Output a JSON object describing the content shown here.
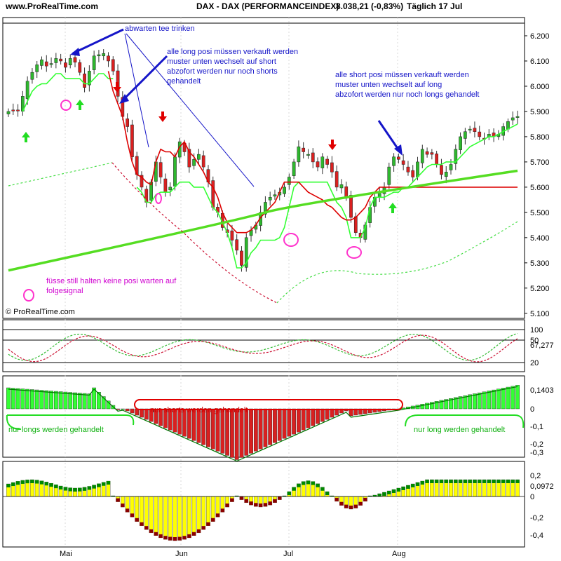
{
  "header": {
    "site": "www.ProRealTime.com",
    "instrument": "DAX - DAX (PERFORMANCEINDEX)",
    "quote": "8.038,21 (-0,83%)",
    "period": "Täglich  17 Jul"
  },
  "watermark": "© ProRealTime.com",
  "colors": {
    "up": "#2eb82e",
    "down": "#d92020",
    "green_line": "#33ff33",
    "red_line": "#dd0000",
    "ma": "#55dd22",
    "blue": "#1515c8",
    "magenta": "#ff33cc",
    "yellow": "#ffff00",
    "darkgreen": "#008800",
    "maroon": "#8b0000"
  },
  "annotations": {
    "a1": "abwarten tee trinken",
    "a2": [
      "alle long posi müssen verkauft werden",
      "muster unten wechselt auf short",
      "abzofort werden nur noch shorts",
      "gehandelt"
    ],
    "a3": [
      "alle short posi müssen verkauft werden",
      "muster unten wechselt auf long",
      "abzofort werden nur noch longs gehandelt"
    ],
    "a4": [
      "füsse still halten keine posi warten auf",
      "folgesignal"
    ],
    "a5": "nur shorts werden gehandelt",
    "a6": "nur longs werden gehandelt",
    "a7": "nur long werden gehandelt"
  },
  "chart_data": [
    {
      "type": "candlestick",
      "panel": "price",
      "x_ticks": [
        "Mai",
        "Jun",
        "Jul",
        "Aug"
      ],
      "y_ticks": [
        "6.200",
        "6.100",
        "6.000",
        "5.900",
        "5.800",
        "5.700",
        "5.600",
        "5.500",
        "5.400",
        "5.300",
        "5.200",
        "5.100"
      ],
      "ylim": [
        5080,
        6250
      ],
      "close": [
        5900,
        5905,
        5905,
        5960,
        6020,
        6055,
        6085,
        6105,
        6080,
        6090,
        6110,
        6100,
        6075,
        6110,
        6095,
        6055,
        5995,
        6060,
        6120,
        6125,
        6130,
        6100,
        6060,
        5960,
        5880,
        5840,
        5720,
        5650,
        5600,
        5540,
        5620,
        5700,
        5640,
        5580,
        5600,
        5720,
        5780,
        5740,
        5680,
        5710,
        5730,
        5680,
        5620,
        5520,
        5500,
        5440,
        5420,
        5390,
        5350,
        5290,
        5400,
        5430,
        5450,
        5500,
        5540,
        5560,
        5570,
        5580,
        5600,
        5640,
        5700,
        5760,
        5740,
        5730,
        5700,
        5680,
        5720,
        5690,
        5660,
        5600,
        5610,
        5560,
        5480,
        5420,
        5400,
        5450,
        5520,
        5560,
        5580,
        5600,
        5680,
        5720,
        5710,
        5690,
        5660,
        5640,
        5700,
        5750,
        5730,
        5730,
        5690,
        5650,
        5660,
        5690,
        5750,
        5800,
        5820,
        5830,
        5820,
        5800,
        5790,
        5810,
        5800,
        5810,
        5840,
        5860,
        5875,
        5880
      ],
      "support_line": [
        null,
        null,
        null,
        5900,
        5940,
        5980,
        6000,
        6010,
        6010,
        6030,
        6050,
        6050,
        6030,
        6030,
        6030,
        6030,
        6010,
        6010,
        6030,
        6050,
        6050,
        6030,
        6030,
        null,
        null,
        null,
        null,
        5600,
        5580,
        5540,
        5540,
        5570,
        5580,
        5580,
        5580,
        5600,
        5620,
        5620,
        5620,
        5600,
        5600,
        5600,
        5560,
        5520,
        5500,
        5460,
        5420,
        5360,
        5280,
        5280,
        5300,
        5340,
        5360,
        5390,
        5390,
        5390,
        5390,
        5400,
        5440,
        5520,
        5600,
        5620,
        5620,
        5620,
        5620,
        5620,
        5620,
        5620,
        5580,
        5540,
        5520,
        5480,
        5400,
        5400,
        5400,
        5440,
        5520,
        5560,
        5560,
        5560,
        5570,
        5580,
        5580,
        5600,
        5600,
        5620,
        5640,
        5660,
        5680,
        5690,
        5690,
        5690,
        5700,
        5700,
        5700,
        5720,
        5740,
        5760,
        5770,
        5780,
        5790,
        5800,
        5800,
        5810,
        5820,
        5830,
        5840,
        5850
      ],
      "resistance_line": [
        null,
        null,
        null,
        null,
        null,
        null,
        null,
        null,
        null,
        null,
        null,
        null,
        null,
        null,
        null,
        null,
        null,
        null,
        null,
        null,
        null,
        6060,
        5980,
        5930,
        5880,
        5780,
        5700,
        5650,
        5640,
        5620,
        5610,
        5700,
        5750,
        5740,
        5740,
        5720,
        5760,
        5780,
        5740,
        5720,
        5690,
        5660,
        5620,
        5600,
        5560,
        5500,
        5460,
        5440,
        5420,
        5420,
        5420,
        5430,
        5450,
        5480,
        5500,
        5520,
        5540,
        5580,
        5620,
        5620,
        5620,
        5620,
        5600,
        5580,
        5570,
        5560,
        5550,
        5530,
        5520,
        5500,
        5480,
        5470,
        5470,
        5480,
        5500,
        5520,
        5560,
        5580,
        5600,
        5600,
        5600,
        5600,
        5600,
        5600,
        5600,
        5600,
        5600,
        5600,
        5600,
        5600,
        5600,
        5600,
        5600,
        5600,
        5600,
        5600,
        5600,
        5600,
        5600,
        5600,
        5600,
        5600,
        5600,
        5600,
        5600,
        5600,
        5600,
        5600
      ],
      "ma_line": {
        "start": 5270,
        "mid": 5500,
        "end": 5665
      }
    },
    {
      "type": "line",
      "panel": "oscillator",
      "y_ticks": [
        "100",
        "50",
        "20"
      ],
      "last_value": "67,277"
    },
    {
      "type": "bar",
      "panel": "histogram_1",
      "y_ticks": [
        "0,1403",
        "0",
        "-0,1",
        "-0,2",
        "-0,3"
      ],
      "last_value": "0,1403"
    },
    {
      "type": "bar",
      "panel": "histogram_2",
      "y_ticks": [
        "0,2",
        "0,0972",
        "0",
        "-0,2",
        "-0,4"
      ],
      "last_value": "0,0972"
    }
  ]
}
